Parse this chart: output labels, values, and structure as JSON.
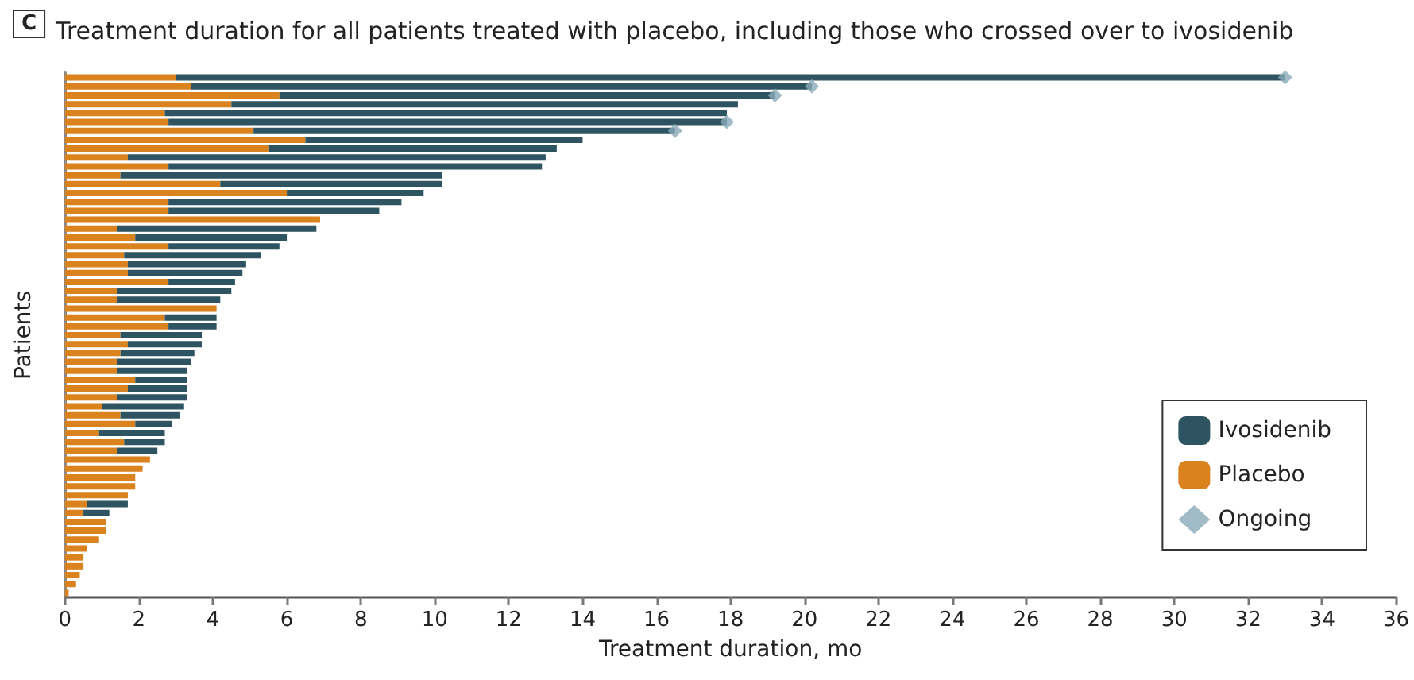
{
  "chart_data": {
    "type": "bar",
    "orientation": "horizontal",
    "stacked": true,
    "title": "Treatment duration for all patients treated with placebo, including those who crossed over to ivosidenib",
    "annotations": [
      "C"
    ],
    "xlabel": "Treatment duration, mo",
    "ylabel": "Patients",
    "categories": [
      null,
      null,
      null,
      null,
      null,
      null,
      null,
      null,
      null,
      null,
      null,
      null,
      null,
      null,
      null,
      null,
      null,
      null,
      null,
      null,
      null,
      null,
      null,
      null,
      null,
      null,
      null,
      null,
      null,
      null,
      null,
      null,
      null,
      null,
      null,
      null,
      null,
      null,
      null,
      null,
      null,
      null,
      null,
      null,
      null,
      null,
      null,
      null,
      null,
      null,
      null,
      null,
      null,
      null,
      null,
      null,
      null,
      null,
      null
    ],
    "series": [
      {
        "name": "Placebo",
        "color": "#d9821e",
        "values": [
          3.0,
          3.4,
          5.8,
          4.5,
          2.7,
          2.8,
          5.1,
          6.5,
          5.5,
          1.7,
          2.8,
          1.5,
          4.2,
          6.0,
          2.8,
          2.8,
          6.9,
          1.4,
          1.9,
          2.8,
          1.6,
          1.7,
          1.7,
          2.8,
          1.4,
          1.4,
          4.1,
          2.7,
          2.8,
          1.5,
          1.7,
          1.5,
          1.4,
          1.4,
          1.9,
          1.7,
          1.4,
          1.0,
          1.5,
          1.9,
          0.9,
          1.6,
          1.4,
          2.3,
          2.1,
          1.9,
          1.9,
          1.7,
          0.6,
          0.5,
          1.1,
          1.1,
          0.9,
          0.6,
          0.5,
          0.5,
          0.4,
          0.3,
          0.1
        ]
      },
      {
        "name": "Ivosidenib",
        "color": "#2e5461",
        "values": [
          30.0,
          16.8,
          13.4,
          13.7,
          15.2,
          15.1,
          11.4,
          7.5,
          7.8,
          11.3,
          10.1,
          8.7,
          6.0,
          3.7,
          6.3,
          5.7,
          null,
          5.4,
          4.1,
          3.0,
          3.7,
          3.2,
          3.1,
          1.8,
          3.1,
          2.8,
          null,
          1.4,
          1.3,
          2.2,
          2.0,
          2.0,
          2.0,
          1.9,
          1.4,
          1.6,
          1.9,
          2.2,
          1.6,
          1.0,
          1.8,
          1.1,
          1.1,
          null,
          null,
          null,
          null,
          null,
          1.1,
          0.7,
          null,
          null,
          null,
          null,
          null,
          null,
          null,
          null,
          null
        ]
      },
      {
        "name": "Ongoing",
        "type": "scatter",
        "marker": "diamond",
        "color": "#8aaab8",
        "values": [
          33.0,
          20.2,
          19.2,
          null,
          null,
          17.9,
          16.5,
          null,
          null,
          null,
          null,
          null,
          null,
          null,
          null,
          null,
          null,
          null,
          null,
          null,
          null,
          null,
          null,
          null,
          null,
          null,
          null,
          null,
          null,
          null,
          null,
          null,
          null,
          null,
          null,
          null,
          null,
          null,
          null,
          null,
          null,
          null,
          null,
          null,
          null,
          null,
          null,
          null,
          null,
          null,
          null,
          null,
          null,
          null,
          null,
          null,
          null,
          null,
          null
        ]
      }
    ],
    "xlim": [
      0,
      36
    ],
    "xticks": [
      0,
      2,
      4,
      6,
      8,
      10,
      12,
      14,
      16,
      18,
      20,
      22,
      24,
      26,
      28,
      30,
      32,
      34,
      36
    ],
    "grid": false,
    "legend": "bottom right"
  }
}
